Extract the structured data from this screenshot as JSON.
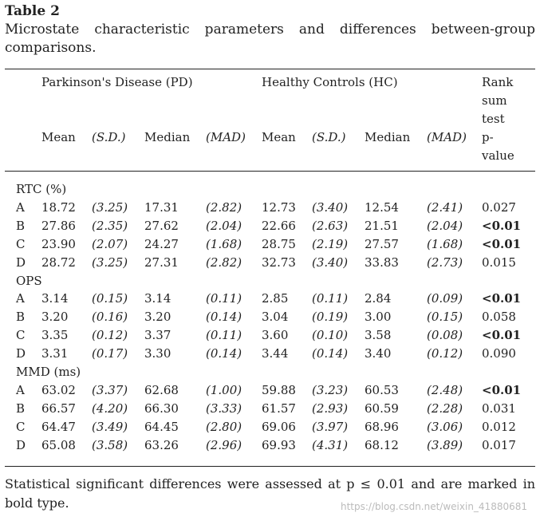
{
  "title": "Table 2",
  "caption": "Microstate characteristic parameters and differences between-group comparisons.",
  "groups": {
    "pd": "Parkinson's Disease (PD)",
    "hc": "Healthy Controls (HC)"
  },
  "pvalue_header": [
    "Rank",
    "sum",
    "test",
    "p-",
    "value"
  ],
  "columns": [
    "Mean",
    "(S.D.)",
    "Median",
    "(MAD)",
    "Mean",
    "(S.D.)",
    "Median",
    "(MAD)"
  ],
  "sections": [
    {
      "label": "RTC (%)",
      "rows": [
        {
          "state": "A",
          "values": [
            "18.72",
            "(3.25)",
            "17.31",
            "(2.82)",
            "12.73",
            "(3.40)",
            "12.54",
            "(2.41)"
          ],
          "p": "0.027",
          "sig": false
        },
        {
          "state": "B",
          "values": [
            "27.86",
            "(2.35)",
            "27.62",
            "(2.04)",
            "22.66",
            "(2.63)",
            "21.51",
            "(2.04)"
          ],
          "p": "<0.01",
          "sig": true
        },
        {
          "state": "C",
          "values": [
            "23.90",
            "(2.07)",
            "24.27",
            "(1.68)",
            "28.75",
            "(2.19)",
            "27.57",
            "(1.68)"
          ],
          "p": "<0.01",
          "sig": true
        },
        {
          "state": "D",
          "values": [
            "28.72",
            "(3.25)",
            "27.31",
            "(2.82)",
            "32.73",
            "(3.40)",
            "33.83",
            "(2.73)"
          ],
          "p": "0.015",
          "sig": false
        }
      ]
    },
    {
      "label": "OPS",
      "rows": [
        {
          "state": "A",
          "values": [
            "3.14",
            "(0.15)",
            "3.14",
            "(0.11)",
            "2.85",
            "(0.11)",
            "2.84",
            "(0.09)"
          ],
          "p": "<0.01",
          "sig": true
        },
        {
          "state": "B",
          "values": [
            "3.20",
            "(0.16)",
            "3.20",
            "(0.14)",
            "3.04",
            "(0.19)",
            "3.00",
            "(0.15)"
          ],
          "p": "0.058",
          "sig": false
        },
        {
          "state": "C",
          "values": [
            "3.35",
            "(0.12)",
            "3.37",
            "(0.11)",
            "3.60",
            "(0.10)",
            "3.58",
            "(0.08)"
          ],
          "p": "<0.01",
          "sig": true
        },
        {
          "state": "D",
          "values": [
            "3.31",
            "(0.17)",
            "3.30",
            "(0.14)",
            "3.44",
            "(0.14)",
            "3.40",
            "(0.12)"
          ],
          "p": "0.090",
          "sig": false
        }
      ]
    },
    {
      "label": "MMD (ms)",
      "rows": [
        {
          "state": "A",
          "values": [
            "63.02",
            "(3.37)",
            "62.68",
            "(1.00)",
            "59.88",
            "(3.23)",
            "60.53",
            "(2.48)"
          ],
          "p": "<0.01",
          "sig": true
        },
        {
          "state": "B",
          "values": [
            "66.57",
            "(4.20)",
            "66.30",
            "(3.33)",
            "61.57",
            "(2.93)",
            "60.59",
            "(2.28)"
          ],
          "p": "0.031",
          "sig": false
        },
        {
          "state": "C",
          "values": [
            "64.47",
            "(3.49)",
            "64.45",
            "(2.80)",
            "69.06",
            "(3.97)",
            "68.96",
            "(3.06)"
          ],
          "p": "0.012",
          "sig": false
        },
        {
          "state": "D",
          "values": [
            "65.08",
            "(3.58)",
            "63.26",
            "(2.96)",
            "69.93",
            "(4.31)",
            "68.12",
            "(3.89)"
          ],
          "p": "0.017",
          "sig": false
        }
      ]
    }
  ],
  "footnote": "Statistical significant differences were assessed at p ≤ 0.01 and are marked in bold type.",
  "watermark": "https://blog.csdn.net/weixin_41880681"
}
